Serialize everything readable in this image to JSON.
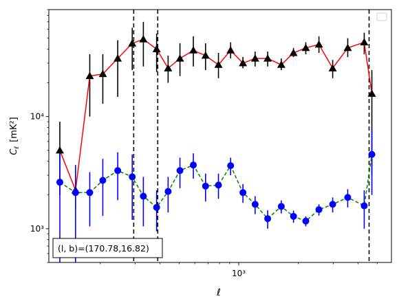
{
  "chart_data": {
    "type": "line",
    "xscale": "log",
    "yscale": "log",
    "xlim": [
      110,
      5900
    ],
    "ylim": [
      500,
      90000
    ],
    "xlabel": "ℓ",
    "ylabel_main": "C",
    "ylabel_sub": "ℓ",
    "ylabel_unit": "[mK²]",
    "x_ticks": [
      {
        "value": 1000,
        "label": "10³"
      }
    ],
    "y_ticks": [
      {
        "value": 1000,
        "label": "10³"
      },
      {
        "value": 10000,
        "label": "10⁴"
      }
    ],
    "annotation": "(l, b)=(170.78,16.82)",
    "legend": "top-right, empty",
    "vlines": [
      295,
      390,
      4550
    ],
    "series": [
      {
        "marker": "triangle",
        "line_color": "#ff0000",
        "line_style": "solid",
        "marker_color": "#000000",
        "err_color": "#000000",
        "points": [
          {
            "x": 125,
            "y": 5000,
            "lo": 2000,
            "hi": 9000
          },
          {
            "x": 150,
            "y": 2200,
            "lo": 1500,
            "hi": 3500
          },
          {
            "x": 177,
            "y": 23000,
            "lo": 10000,
            "hi": 36000
          },
          {
            "x": 206,
            "y": 24000,
            "lo": 13000,
            "hi": 36000
          },
          {
            "x": 245,
            "y": 33000,
            "lo": 15000,
            "hi": 48000
          },
          {
            "x": 290,
            "y": 45000,
            "lo": 26000,
            "hi": 62000
          },
          {
            "x": 330,
            "y": 49000,
            "lo": 28000,
            "hi": 70000
          },
          {
            "x": 385,
            "y": 40000,
            "lo": 25000,
            "hi": 55000
          },
          {
            "x": 440,
            "y": 27000,
            "lo": 20000,
            "hi": 35000
          },
          {
            "x": 505,
            "y": 33000,
            "lo": 23000,
            "hi": 45000
          },
          {
            "x": 590,
            "y": 39000,
            "lo": 28000,
            "hi": 52000
          },
          {
            "x": 680,
            "y": 35000,
            "lo": 26000,
            "hi": 45000
          },
          {
            "x": 790,
            "y": 29000,
            "lo": 22000,
            "hi": 37000
          },
          {
            "x": 910,
            "y": 39000,
            "lo": 33000,
            "hi": 46000
          },
          {
            "x": 1050,
            "y": 30000,
            "lo": 27000,
            "hi": 34000
          },
          {
            "x": 1210,
            "y": 33000,
            "lo": 28000,
            "hi": 38000
          },
          {
            "x": 1400,
            "y": 33000,
            "lo": 28000,
            "hi": 38000
          },
          {
            "x": 1640,
            "y": 29000,
            "lo": 26000,
            "hi": 33000
          },
          {
            "x": 1890,
            "y": 37000,
            "lo": 34000,
            "hi": 41000
          },
          {
            "x": 2180,
            "y": 41000,
            "lo": 36000,
            "hi": 46000
          },
          {
            "x": 2540,
            "y": 44000,
            "lo": 37000,
            "hi": 52000
          },
          {
            "x": 2980,
            "y": 27000,
            "lo": 22000,
            "hi": 32000
          },
          {
            "x": 3550,
            "y": 41000,
            "lo": 34000,
            "hi": 50000
          },
          {
            "x": 4300,
            "y": 46000,
            "lo": 36000,
            "hi": 56000
          },
          {
            "x": 4700,
            "y": 16000,
            "lo": 3000,
            "hi": 26000
          }
        ]
      },
      {
        "marker": "circle",
        "line_color": "#008000",
        "line_style": "dashed",
        "marker_color": "#0000ff",
        "err_color": "#0000ff",
        "points": [
          {
            "x": 125,
            "y": 2600,
            "lo": 500,
            "hi": 4600
          },
          {
            "x": 150,
            "y": 2100,
            "lo": 500,
            "hi": 3700
          },
          {
            "x": 177,
            "y": 2100,
            "lo": 1050,
            "hi": 3200
          },
          {
            "x": 206,
            "y": 2700,
            "lo": 1300,
            "hi": 4200
          },
          {
            "x": 245,
            "y": 3300,
            "lo": 1800,
            "hi": 4800
          },
          {
            "x": 290,
            "y": 2900,
            "lo": 1200,
            "hi": 4600
          },
          {
            "x": 330,
            "y": 1950,
            "lo": 1050,
            "hi": 2900
          },
          {
            "x": 385,
            "y": 1550,
            "lo": 950,
            "hi": 2200
          },
          {
            "x": 440,
            "y": 2150,
            "lo": 1400,
            "hi": 2900
          },
          {
            "x": 505,
            "y": 3300,
            "lo": 2300,
            "hi": 4300
          },
          {
            "x": 590,
            "y": 3700,
            "lo": 2800,
            "hi": 4700
          },
          {
            "x": 680,
            "y": 2400,
            "lo": 1750,
            "hi": 3100
          },
          {
            "x": 790,
            "y": 2450,
            "lo": 1850,
            "hi": 3100
          },
          {
            "x": 910,
            "y": 3650,
            "lo": 3000,
            "hi": 4300
          },
          {
            "x": 1050,
            "y": 2100,
            "lo": 1700,
            "hi": 2500
          },
          {
            "x": 1210,
            "y": 1650,
            "lo": 1350,
            "hi": 1950
          },
          {
            "x": 1400,
            "y": 1230,
            "lo": 1000,
            "hi": 1460
          },
          {
            "x": 1640,
            "y": 1580,
            "lo": 1370,
            "hi": 1790
          },
          {
            "x": 1890,
            "y": 1290,
            "lo": 1130,
            "hi": 1450
          },
          {
            "x": 2180,
            "y": 1170,
            "lo": 1050,
            "hi": 1290
          },
          {
            "x": 2540,
            "y": 1480,
            "lo": 1310,
            "hi": 1650
          },
          {
            "x": 2980,
            "y": 1650,
            "lo": 1400,
            "hi": 1900
          },
          {
            "x": 3550,
            "y": 1900,
            "lo": 1550,
            "hi": 2250
          },
          {
            "x": 4300,
            "y": 1600,
            "lo": 1000,
            "hi": 2200
          },
          {
            "x": 4700,
            "y": 4600,
            "lo": 2000,
            "hi": 7600
          }
        ]
      }
    ]
  }
}
